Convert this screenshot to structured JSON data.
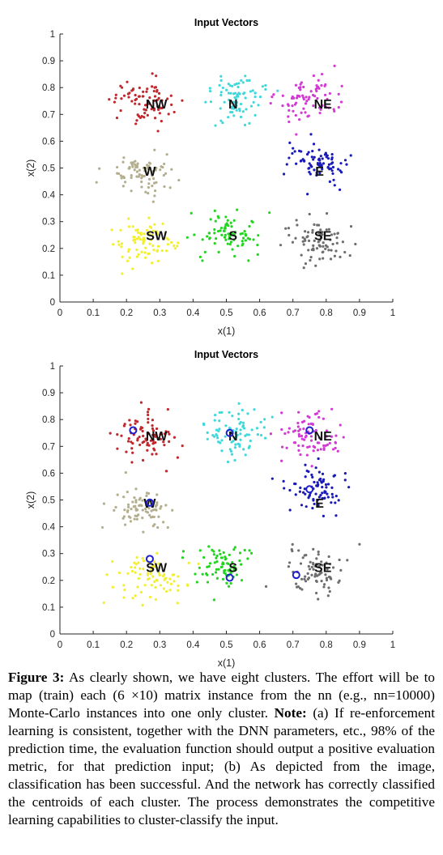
{
  "chart_data": [
    {
      "type": "scatter",
      "title": "Input Vectors",
      "xlabel": "x(1)",
      "ylabel": "x(2)",
      "xlim": [
        0,
        1
      ],
      "ylim": [
        0,
        1
      ],
      "xticks": [
        "0",
        "0.1",
        "0.2",
        "0.3",
        "0.4",
        "0.5",
        "0.6",
        "0.7",
        "0.8",
        "0.9",
        "1"
      ],
      "yticks": [
        "0",
        "0.1",
        "0.2",
        "0.3",
        "0.4",
        "0.5",
        "0.6",
        "0.7",
        "0.8",
        "0.9",
        "1"
      ],
      "grid": false,
      "clusters": [
        {
          "label": "NW",
          "color": "#c0282d",
          "center": [
            0.25,
            0.75
          ],
          "label_at": [
            0.29,
            0.74
          ],
          "spread": [
            0.045,
            0.045
          ]
        },
        {
          "label": "N",
          "color": "#3fd9dc",
          "center": [
            0.53,
            0.76
          ],
          "label_at": [
            0.52,
            0.74
          ],
          "spread": [
            0.04,
            0.045
          ]
        },
        {
          "label": "NE",
          "color": "#d23ad4",
          "center": [
            0.75,
            0.76
          ],
          "label_at": [
            0.79,
            0.74
          ],
          "spread": [
            0.045,
            0.045
          ]
        },
        {
          "label": "W",
          "color": "#b3ae8e",
          "center": [
            0.25,
            0.47
          ],
          "label_at": [
            0.27,
            0.49
          ],
          "spread": [
            0.045,
            0.04
          ]
        },
        {
          "label": "E",
          "color": "#1a1ab8",
          "center": [
            0.77,
            0.52
          ],
          "label_at": [
            0.78,
            0.49
          ],
          "spread": [
            0.045,
            0.035
          ]
        },
        {
          "label": "SW",
          "color": "#f2ef30",
          "center": [
            0.25,
            0.23
          ],
          "label_at": [
            0.29,
            0.25
          ],
          "spread": [
            0.05,
            0.05
          ]
        },
        {
          "label": "S",
          "color": "#22d51f",
          "center": [
            0.5,
            0.25
          ],
          "label_at": [
            0.52,
            0.25
          ],
          "spread": [
            0.045,
            0.04
          ]
        },
        {
          "label": "SE",
          "color": "#6e6e6e",
          "center": [
            0.78,
            0.23
          ],
          "label_at": [
            0.79,
            0.25
          ],
          "spread": [
            0.045,
            0.045
          ]
        }
      ],
      "centroids": []
    },
    {
      "type": "scatter",
      "title": "Input Vectors",
      "xlabel": "x(1)",
      "ylabel": "x(2)",
      "xlim": [
        0,
        1
      ],
      "ylim": [
        0,
        1
      ],
      "xticks": [
        "0",
        "0.1",
        "0.2",
        "0.3",
        "0.4",
        "0.5",
        "0.6",
        "0.7",
        "0.8",
        "0.9",
        "1"
      ],
      "yticks": [
        "0",
        "0.1",
        "0.2",
        "0.3",
        "0.4",
        "0.5",
        "0.6",
        "0.7",
        "0.8",
        "0.9",
        "1"
      ],
      "grid": false,
      "clusters": [
        {
          "label": "NW",
          "color": "#c0282d",
          "center": [
            0.25,
            0.73
          ],
          "label_at": [
            0.29,
            0.74
          ],
          "spread": [
            0.045,
            0.045
          ]
        },
        {
          "label": "N",
          "color": "#3fd9dc",
          "center": [
            0.52,
            0.75
          ],
          "label_at": [
            0.52,
            0.74
          ],
          "spread": [
            0.045,
            0.04
          ]
        },
        {
          "label": "NE",
          "color": "#d23ad4",
          "center": [
            0.75,
            0.74
          ],
          "label_at": [
            0.79,
            0.74
          ],
          "spread": [
            0.045,
            0.045
          ]
        },
        {
          "label": "W",
          "color": "#b3ae8e",
          "center": [
            0.24,
            0.47
          ],
          "label_at": [
            0.27,
            0.49
          ],
          "spread": [
            0.05,
            0.04
          ]
        },
        {
          "label": "E",
          "color": "#1a1ab8",
          "center": [
            0.77,
            0.54
          ],
          "label_at": [
            0.78,
            0.49
          ],
          "spread": [
            0.045,
            0.05
          ]
        },
        {
          "label": "SW",
          "color": "#f2ef30",
          "center": [
            0.27,
            0.21
          ],
          "label_at": [
            0.29,
            0.25
          ],
          "spread": [
            0.05,
            0.04
          ]
        },
        {
          "label": "S",
          "color": "#22d51f",
          "center": [
            0.49,
            0.25
          ],
          "label_at": [
            0.52,
            0.25
          ],
          "spread": [
            0.045,
            0.04
          ]
        },
        {
          "label": "SE",
          "color": "#6e6e6e",
          "center": [
            0.77,
            0.23
          ],
          "label_at": [
            0.79,
            0.25
          ],
          "spread": [
            0.045,
            0.04
          ]
        }
      ],
      "centroids": [
        [
          0.22,
          0.76
        ],
        [
          0.51,
          0.75
        ],
        [
          0.75,
          0.76
        ],
        [
          0.27,
          0.49
        ],
        [
          0.75,
          0.54
        ],
        [
          0.27,
          0.28
        ],
        [
          0.51,
          0.21
        ],
        [
          0.71,
          0.22
        ]
      ],
      "centroid_color": "#1f1fd0"
    }
  ],
  "caption": {
    "label": "Figure 3:",
    "text1": " As clearly shown, we have eight clusters. The effort will be to map (train) each (6 ×10) matrix instance from the nn (e.g., nn=10000) Monte-Carlo instances into one only cluster. ",
    "note_label": "Note:",
    "text2": " (a) If re-enforcement learning is consistent, together with the DNN parameters, etc., 98% of the prediction time, the evaluation function should output a positive evaluation metric, for that prediction input; (b) As depicted from the image, classification has been successful. And the network has correctly classified the centroids of each cluster. The process demonstrates the competitive learning capabilities to cluster-classify the input."
  }
}
